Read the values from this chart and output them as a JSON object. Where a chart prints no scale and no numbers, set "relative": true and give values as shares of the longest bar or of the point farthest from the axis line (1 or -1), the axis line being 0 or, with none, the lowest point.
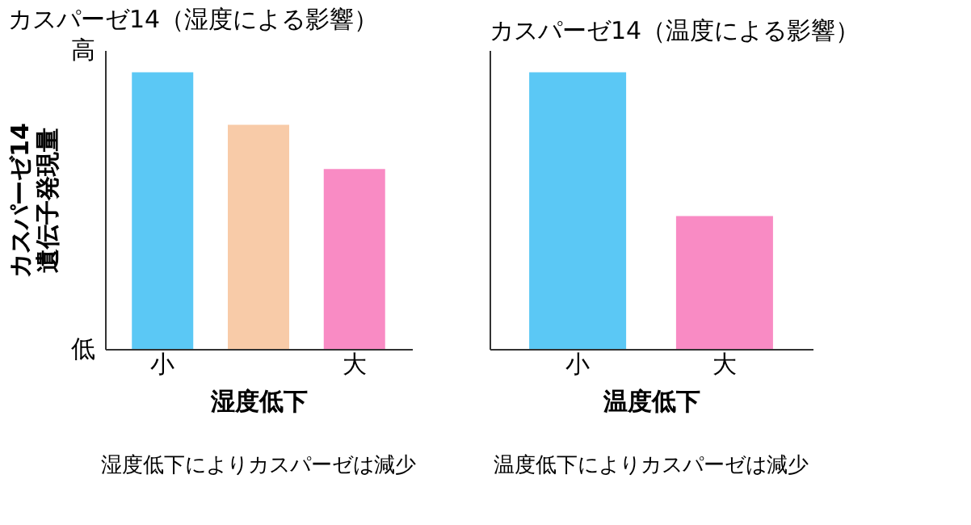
{
  "chart_data": [
    {
      "type": "bar",
      "title": "カスパーゼ14（湿度による影響）",
      "ylabel": "カスパーゼ14\n遺伝子発現量",
      "xlabel": "湿度低下",
      "relative": true,
      "categories": [
        "小",
        null,
        "大"
      ],
      "values": [
        1,
        0.81,
        0.65
      ],
      "colors": [
        "#5bc8f5",
        "#f8cba8",
        "#f98bc4"
      ],
      "annotations": [
        "高",
        "低",
        "湿度低下によりカスパーゼは減少"
      ]
    },
    {
      "type": "bar",
      "title": "カスパーゼ14（温度による影響）",
      "xlabel": "温度低下",
      "relative": true,
      "categories": [
        "小",
        "大"
      ],
      "values": [
        1,
        0.48
      ],
      "colors": [
        "#5bc8f5",
        "#f98bc4"
      ],
      "annotations": [
        "温度低下によりカスパーゼは減少"
      ]
    }
  ]
}
